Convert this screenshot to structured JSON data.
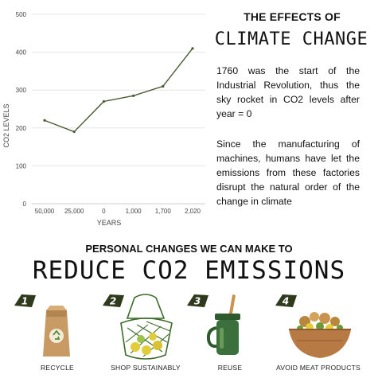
{
  "chart_data": {
    "type": "line",
    "categories": [
      "50,000",
      "25,000",
      "0",
      "1,000",
      "1,700",
      "2,020"
    ],
    "values": [
      220,
      190,
      270,
      285,
      310,
      410
    ],
    "y_ticks": [
      "0",
      "100",
      "200",
      "300",
      "400",
      "500"
    ],
    "ylim": [
      0,
      500
    ],
    "xlabel": "YEARS",
    "ylabel": "CO2 LEVELS",
    "grid": true,
    "line_color": "#4a5a34"
  },
  "header": {
    "line1": "THE EFFECTS OF",
    "line2": "CLIMATE CHANGE"
  },
  "paragraphs": [
    "1760 was the start of the Industrial Revolution, thus the sky rocket in CO2 levels after year = 0",
    "Since the manufacturing of machines, humans have let the emissions from these factories disrupt the natural order of the change in climate"
  ],
  "section": {
    "line1": "PERSONAL CHANGES WE CAN MAKE TO",
    "line2": "REDUCE CO2 EMISSIONS"
  },
  "actions": [
    {
      "number": "1",
      "label": "RECYCLE",
      "icon": "recycle-bag-icon"
    },
    {
      "number": "2",
      "label": "SHOP SUSTAINABLY",
      "icon": "net-bag-icon"
    },
    {
      "number": "3",
      "label": "REUSE",
      "icon": "reusable-cup-icon"
    },
    {
      "number": "4",
      "label": "AVOID MEAT PRODUCTS",
      "icon": "veggie-bowl-icon"
    }
  ],
  "colors": {
    "badge": "#2f3a1c",
    "line": "#4a5a34",
    "grid": "#e6e6e6"
  }
}
